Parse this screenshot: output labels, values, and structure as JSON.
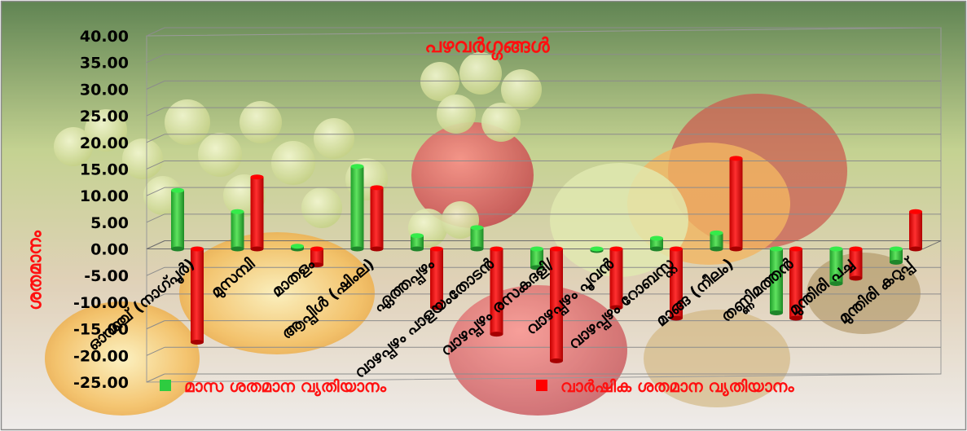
{
  "chart_data": {
    "type": "bar",
    "title": "പഴവർഗ്ഗങ്ങൾ",
    "ylabel": "ശതമാനം",
    "ylim": [
      -25,
      40
    ],
    "yticks": [
      "40.00",
      "35.00",
      "30.00",
      "25.00",
      "20.00",
      "15.00",
      "10.00",
      "5.00",
      "0.00",
      "-5.00",
      "-10.00",
      "-15.00",
      "-20.00",
      "-25.00"
    ],
    "grid": true,
    "legend_position": "bottom",
    "categories": [
      "ഓറഞ്ച് (നാഗ്പൂർ)",
      "മുസമ്പി",
      "മാതളം",
      "ആപ്പിൾ (ഷിംല)",
      "ഏത്തപ്പഴം",
      "വാഴപ്പഴം പാളയംതോടൻ",
      "വാഴപ്പഴം രസകദളി/",
      "വാഴപ്പഴം പൂവൻ",
      "വാഴപ്പഴം റോബസ്റ്റ",
      "മാങ്ങ (നീലം)",
      "തണ്ണിമത്തൻ",
      "മുന്തിരി പച്ച",
      "മുന്തിരി കറുപ്പ്"
    ],
    "series": [
      {
        "name": "മാസ ശതമാന വ്യതിയാനം",
        "color": "#2ecc40",
        "values": [
          11.0,
          7.0,
          0.5,
          15.5,
          2.5,
          4.0,
          -3.5,
          -0.3,
          2.0,
          3.0,
          -12.0,
          -6.5,
          -2.5
        ]
      },
      {
        "name": "വാർഷിക ശതമാന വ്യതിയാനം",
        "color": "#ff0000",
        "values": [
          -17.5,
          13.5,
          -3.0,
          11.5,
          -11.0,
          -16.0,
          -21.0,
          -11.0,
          -13.0,
          17.0,
          -13.0,
          -5.5,
          7.0
        ]
      }
    ]
  }
}
